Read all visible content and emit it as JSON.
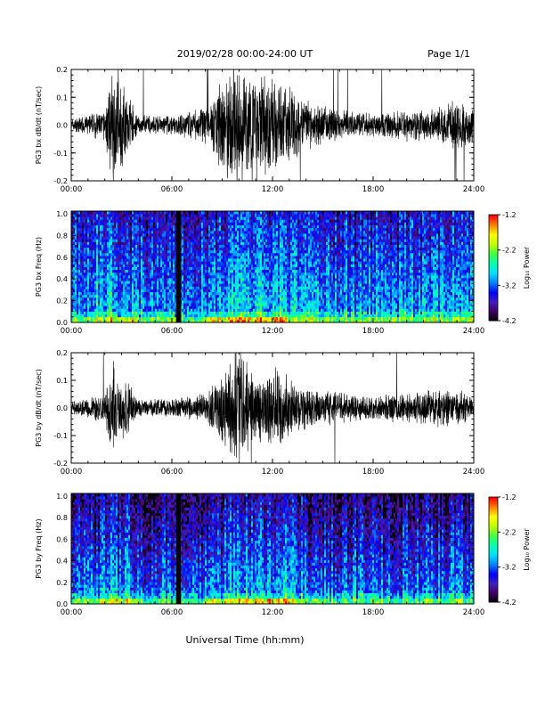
{
  "header": {
    "date_range": "2019/02/28  00:00-24:00 UT",
    "page": "Page 1/1"
  },
  "footer": {
    "xlabel": "Universal Time (hh:mm)"
  },
  "colorbar": {
    "label": "Log₁₀ Power",
    "ticks": [
      "-1.2",
      "-2.2",
      "-3.2",
      "-4.2"
    ],
    "colors": [
      "#000000",
      "#400060",
      "#4020c0",
      "#0000ff",
      "#0080ff",
      "#00e0ff",
      "#00ffb0",
      "#40ff40",
      "#c0ff00",
      "#ffff00",
      "#ff8000",
      "#ff0000"
    ]
  },
  "chart_data": [
    {
      "type": "line",
      "ylabel": "PG3 bx dB/dt (nT/sec)",
      "xticks": [
        "00:00",
        "06:00",
        "12:00",
        "18:00",
        "24:00"
      ],
      "yticks": [
        "0.2",
        "0.1",
        "0.0",
        "-0.1",
        "-0.2"
      ],
      "xlim": [
        0,
        24
      ],
      "ylim": [
        -0.2,
        0.2
      ],
      "series": [
        {
          "envelope_hours": [
            0,
            2,
            2.5,
            3,
            4,
            6,
            8,
            9,
            10,
            11,
            12,
            13,
            14,
            16,
            18,
            20,
            22,
            23,
            24
          ],
          "envelope_amplitude": [
            0.02,
            0.05,
            0.2,
            0.15,
            0.03,
            0.03,
            0.06,
            0.15,
            0.2,
            0.15,
            0.16,
            0.12,
            0.08,
            0.05,
            0.04,
            0.05,
            0.06,
            0.08,
            0.06
          ]
        }
      ]
    },
    {
      "type": "heatmap",
      "ylabel": "PG3 bx Freq (Hz)",
      "xticks": [
        "00:00",
        "06:00",
        "12:00",
        "18:00",
        "24:00"
      ],
      "yticks": [
        "1.0",
        "0.8",
        "0.6",
        "0.4",
        "0.2",
        "0.0"
      ],
      "xlim": [
        0,
        24
      ],
      "ylim": [
        0,
        1.0
      ],
      "zlim": [
        -4.2,
        -1.2
      ],
      "data_gap_hours": [
        6.25,
        6.55
      ]
    },
    {
      "type": "line",
      "ylabel": "PG3 by dB/dt (nT/sec)",
      "xticks": [
        "00:00",
        "06:00",
        "12:00",
        "18:00",
        "24:00"
      ],
      "yticks": [
        "0.2",
        "0.1",
        "0.0",
        "-0.1",
        "-0.2"
      ],
      "xlim": [
        0,
        24
      ],
      "ylim": [
        -0.2,
        0.2
      ],
      "series": [
        {
          "envelope_hours": [
            0,
            2,
            2.5,
            3,
            4,
            6,
            8,
            9,
            10,
            11,
            12,
            13,
            14,
            16,
            18,
            20,
            22,
            23,
            24
          ],
          "envelope_amplitude": [
            0.02,
            0.05,
            0.15,
            0.12,
            0.03,
            0.03,
            0.05,
            0.12,
            0.2,
            0.1,
            0.14,
            0.1,
            0.07,
            0.05,
            0.04,
            0.05,
            0.06,
            0.06,
            0.04
          ]
        }
      ]
    },
    {
      "type": "heatmap",
      "ylabel": "PG3 by Freq (Hz)",
      "xticks": [
        "00:00",
        "06:00",
        "12:00",
        "18:00",
        "24:00"
      ],
      "yticks": [
        "1.0",
        "0.8",
        "0.6",
        "0.4",
        "0.2",
        "0.0"
      ],
      "xlim": [
        0,
        24
      ],
      "ylim": [
        0,
        1.0
      ],
      "zlim": [
        -4.2,
        -1.2
      ],
      "data_gap_hours": [
        6.25,
        6.55
      ]
    }
  ]
}
